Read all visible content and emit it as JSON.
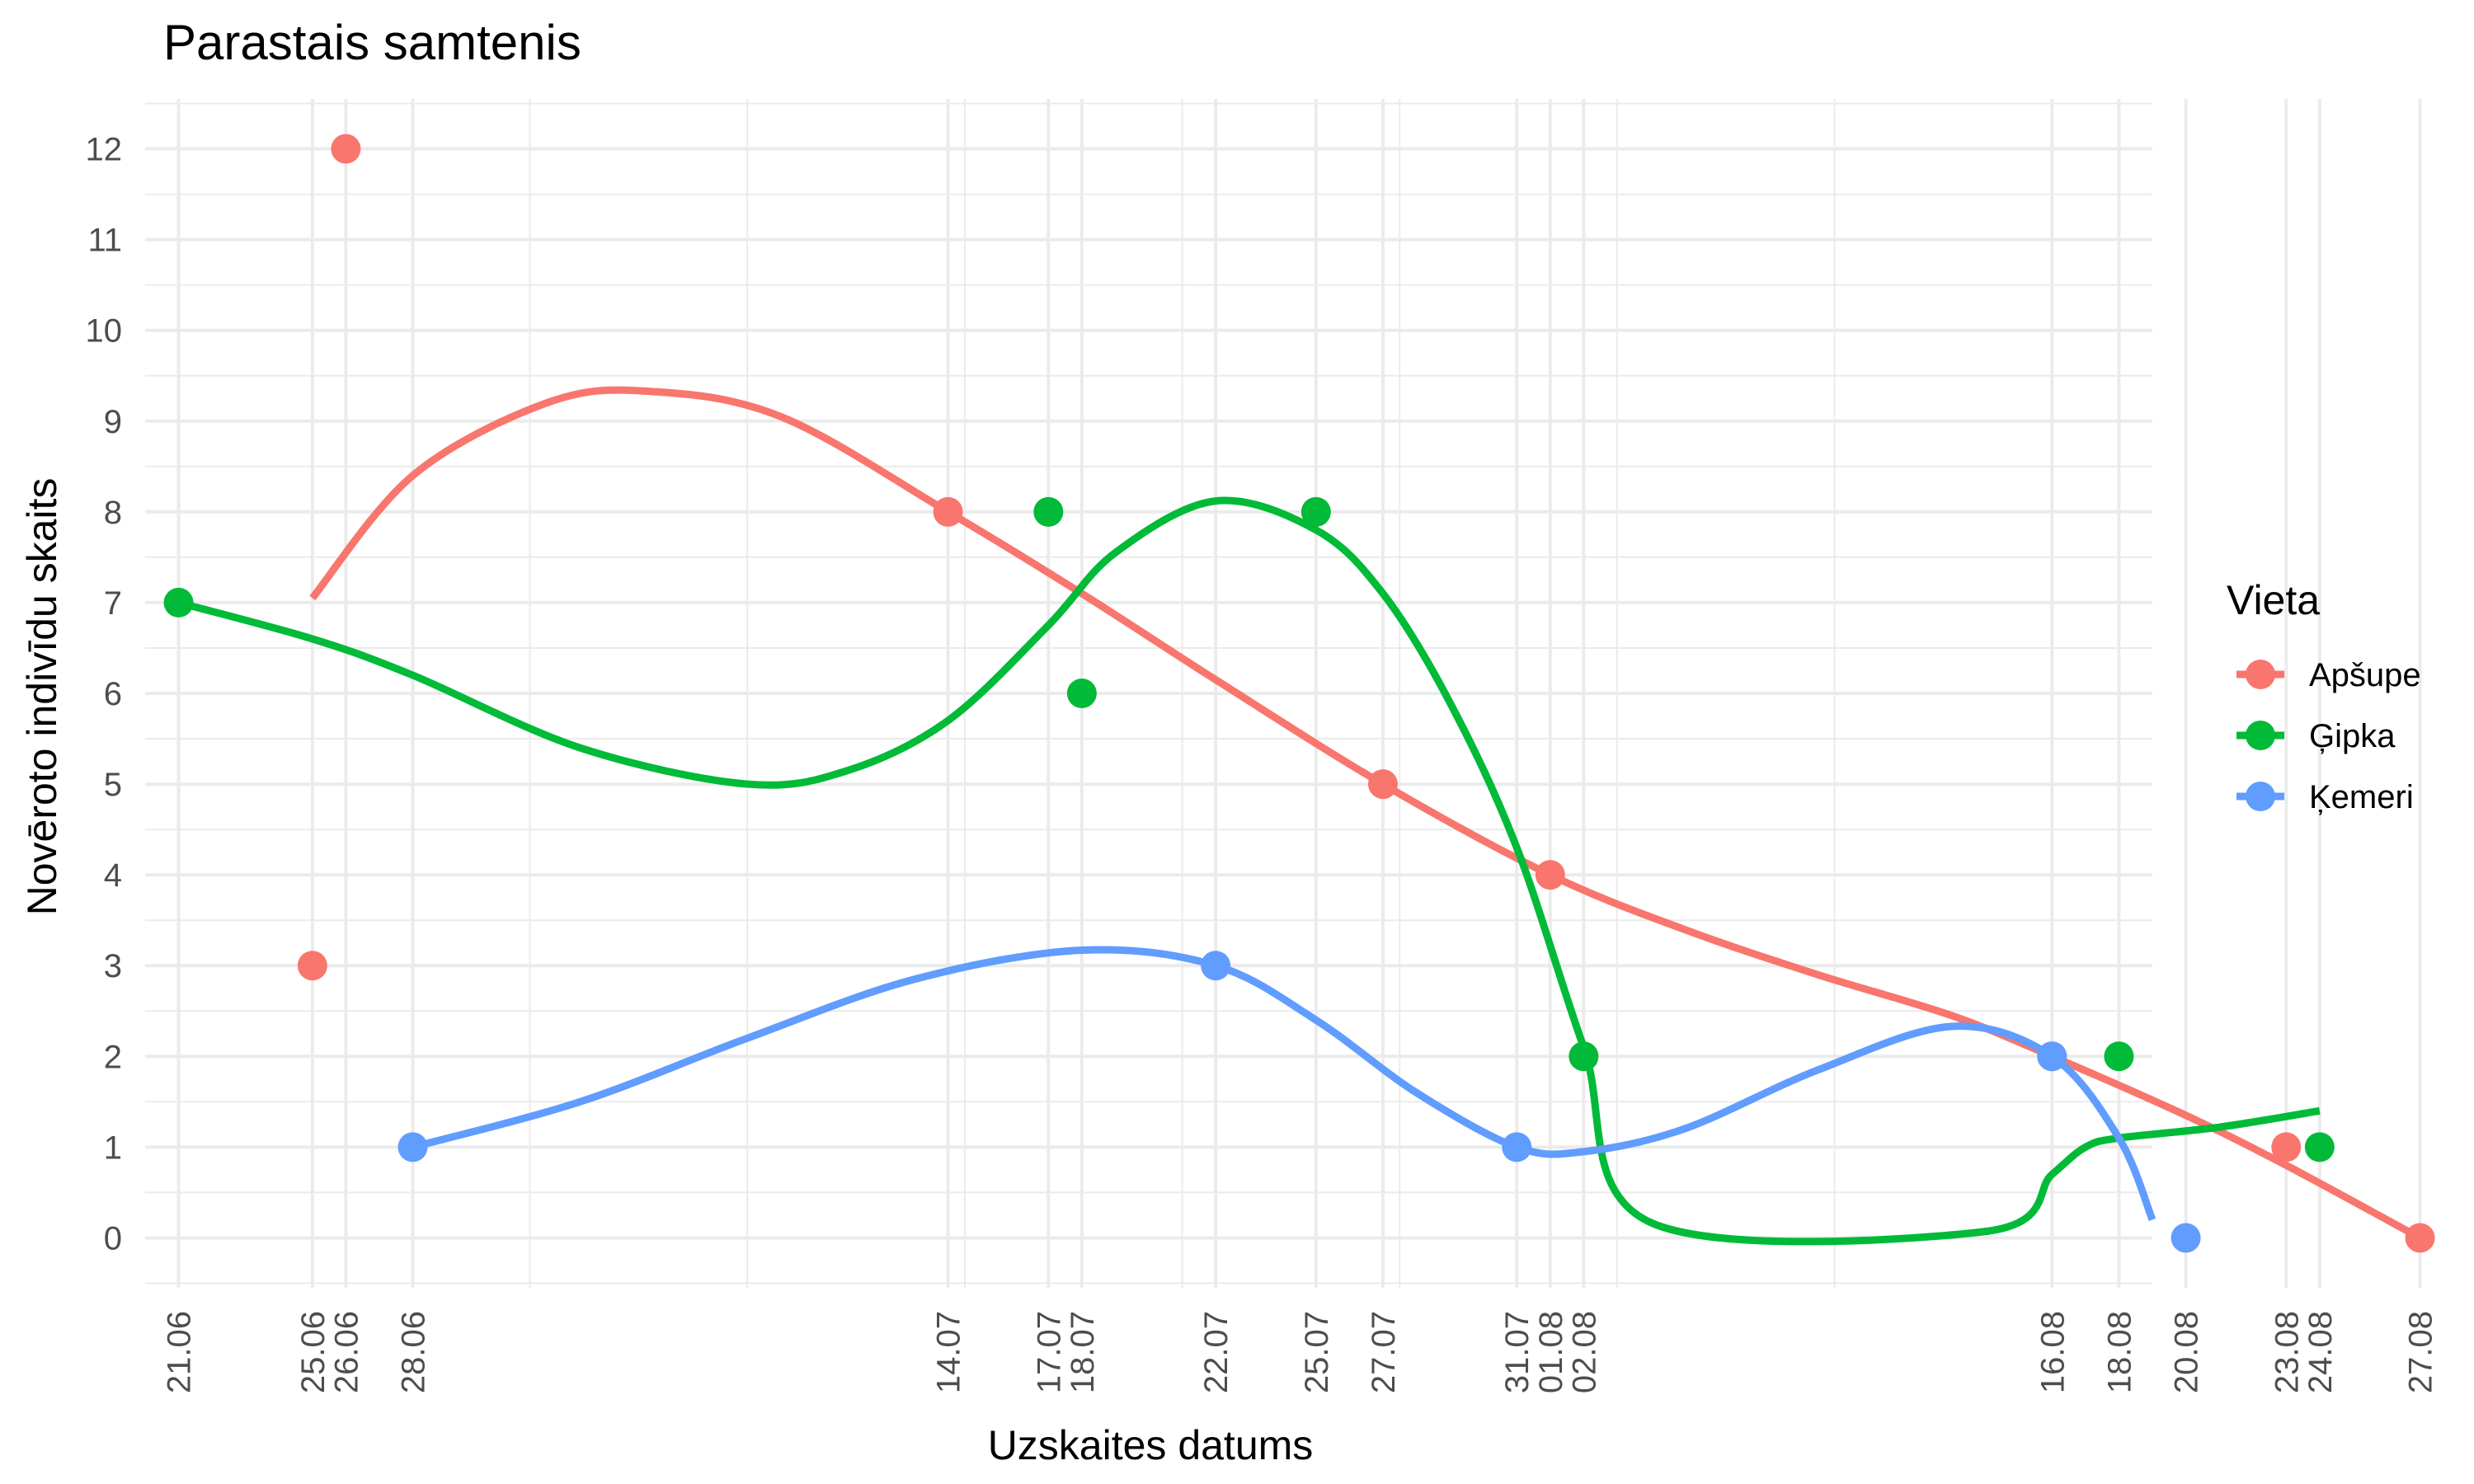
{
  "chart_data": {
    "type": "line",
    "title": "Parastais samtenis",
    "xlabel": "Uzskaites datums",
    "ylabel": "Novēroto indivīdu skaits",
    "ylim": [
      -0.55,
      12.55
    ],
    "yticks": [
      0,
      1,
      2,
      3,
      4,
      5,
      6,
      7,
      8,
      9,
      10,
      11,
      12
    ],
    "x_tick_dates": [
      "21.06",
      "25.06",
      "26.06",
      "28.06",
      "14.07",
      "17.07",
      "18.07",
      "22.07",
      "25.07",
      "27.07",
      "31.07",
      "01.08",
      "02.08",
      "16.08",
      "18.08",
      "20.08",
      "23.08",
      "24.08",
      "27.08"
    ],
    "grid": true,
    "legend": {
      "title": "Vieta",
      "position": "right"
    },
    "series": [
      {
        "name": "Apšupe",
        "color": "#F8766D",
        "points": [
          {
            "x": "25.06",
            "y": 3
          },
          {
            "x": "26.06",
            "y": 12
          },
          {
            "x": "14.07",
            "y": 8
          },
          {
            "x": "27.07",
            "y": 5
          },
          {
            "x": "01.08",
            "y": 4
          },
          {
            "x": "16.08",
            "y": 2
          },
          {
            "x": "23.08",
            "y": 1
          },
          {
            "x": "27.08",
            "y": 0
          }
        ],
        "smooth": [
          {
            "x": "25.06",
            "y": 7.05
          },
          {
            "x": "28.06",
            "y": 8.4
          },
          {
            "x": "02.07",
            "y": 9.2
          },
          {
            "x": "05.07",
            "y": 9.33
          },
          {
            "x": "09.07",
            "y": 9.05
          },
          {
            "x": "14.07",
            "y": 8.0
          },
          {
            "x": "18.07",
            "y": 7.1
          },
          {
            "x": "22.07",
            "y": 6.15
          },
          {
            "x": "27.07",
            "y": 5.0
          },
          {
            "x": "01.08",
            "y": 4.0
          },
          {
            "x": "05.08",
            "y": 3.4
          },
          {
            "x": "09.08",
            "y": 2.9
          },
          {
            "x": "13.08",
            "y": 2.45
          },
          {
            "x": "16.08",
            "y": 2.0
          },
          {
            "x": "20.08",
            "y": 1.35
          },
          {
            "x": "23.08",
            "y": 0.8
          },
          {
            "x": "27.08",
            "y": 0.0
          }
        ]
      },
      {
        "name": "Ģipka",
        "color": "#00BA38",
        "points": [
          {
            "x": "21.06",
            "y": 7
          },
          {
            "x": "17.07",
            "y": 8
          },
          {
            "x": "18.07",
            "y": 6
          },
          {
            "x": "25.07",
            "y": 8
          },
          {
            "x": "02.08",
            "y": 2
          },
          {
            "x": "18.08",
            "y": 2
          },
          {
            "x": "24.08",
            "y": 1
          }
        ],
        "smooth": [
          {
            "x": "21.06",
            "y": 7.0
          },
          {
            "x": "25.06",
            "y": 6.6
          },
          {
            "x": "28.06",
            "y": 6.2
          },
          {
            "x": "03.07",
            "y": 5.4
          },
          {
            "x": "08.07",
            "y": 5.0
          },
          {
            "x": "11.07",
            "y": 5.15
          },
          {
            "x": "14.07",
            "y": 5.7
          },
          {
            "x": "17.07",
            "y": 6.75
          },
          {
            "x": "19.07",
            "y": 7.55
          },
          {
            "x": "22.07",
            "y": 8.12
          },
          {
            "x": "25.07",
            "y": 7.8
          },
          {
            "x": "27.07",
            "y": 7.1
          },
          {
            "x": "29.07",
            "y": 5.9
          },
          {
            "x": "31.07",
            "y": 4.3
          },
          {
            "x": "02.08",
            "y": 2.1
          },
          {
            "x": "04.08",
            "y": 0.17
          },
          {
            "x": "14.08",
            "y": 0.07
          },
          {
            "x": "16.08",
            "y": 0.7
          },
          {
            "x": "17.08",
            "y": 1.0
          },
          {
            "x": "18.08",
            "y": 1.1
          },
          {
            "x": "21.08",
            "y": 1.22
          },
          {
            "x": "24.08",
            "y": 1.4
          }
        ]
      },
      {
        "name": "Ķemeri",
        "color": "#619CFF",
        "points": [
          {
            "x": "28.06",
            "y": 1
          },
          {
            "x": "22.07",
            "y": 3
          },
          {
            "x": "31.07",
            "y": 1
          },
          {
            "x": "16.08",
            "y": 2
          },
          {
            "x": "20.08",
            "y": 0
          }
        ],
        "smooth": [
          {
            "x": "28.06",
            "y": 1.0
          },
          {
            "x": "03.07",
            "y": 1.5
          },
          {
            "x": "08.07",
            "y": 2.2
          },
          {
            "x": "13.07",
            "y": 2.85
          },
          {
            "x": "18.07",
            "y": 3.17
          },
          {
            "x": "22.07",
            "y": 3.0
          },
          {
            "x": "25.07",
            "y": 2.4
          },
          {
            "x": "28.07",
            "y": 1.6
          },
          {
            "x": "31.07",
            "y": 1.0
          },
          {
            "x": "02.08",
            "y": 0.95
          },
          {
            "x": "05.08",
            "y": 1.2
          },
          {
            "x": "09.08",
            "y": 1.85
          },
          {
            "x": "13.08",
            "y": 2.33
          },
          {
            "x": "16.08",
            "y": 2.0
          },
          {
            "x": "18.08",
            "y": 1.1
          },
          {
            "x": "19.08",
            "y": 0.2
          }
        ]
      }
    ]
  }
}
